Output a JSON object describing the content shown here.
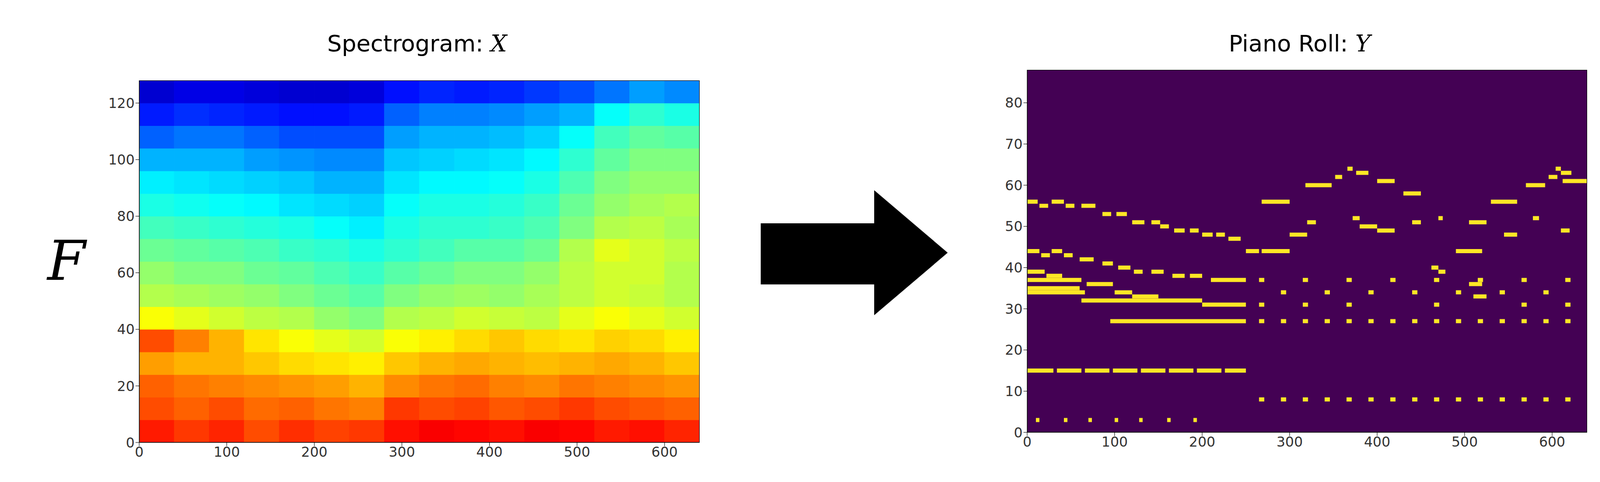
{
  "chart_data": [
    {
      "type": "heatmap",
      "title": "Spectrogram: X",
      "ylabel": "F",
      "xlim": [
        0,
        640
      ],
      "ylim": [
        0,
        128
      ],
      "xticks": [
        0,
        100,
        200,
        300,
        400,
        500,
        600
      ],
      "yticks": [
        0,
        20,
        40,
        60,
        80,
        100,
        120
      ],
      "x_edges": [
        0,
        40,
        80,
        120,
        160,
        200,
        240,
        280,
        320,
        360,
        400,
        440,
        480,
        520,
        560,
        600,
        640
      ],
      "y_edges": [
        0,
        8,
        16,
        24,
        32,
        40,
        48,
        56,
        64,
        72,
        80,
        88,
        96,
        104,
        112,
        120,
        128
      ],
      "color_range": [
        0,
        1
      ],
      "cells": [
        [
          0.85,
          0.82,
          0.84,
          0.8,
          0.83,
          0.81,
          0.82,
          0.86,
          0.88,
          0.87,
          0.86,
          0.88,
          0.87,
          0.85,
          0.86,
          0.84
        ],
        [
          0.8,
          0.78,
          0.8,
          0.77,
          0.78,
          0.76,
          0.75,
          0.82,
          0.8,
          0.81,
          0.79,
          0.8,
          0.82,
          0.8,
          0.79,
          0.78
        ],
        [
          0.78,
          0.76,
          0.75,
          0.74,
          0.73,
          0.72,
          0.7,
          0.74,
          0.76,
          0.77,
          0.75,
          0.74,
          0.76,
          0.75,
          0.74,
          0.73
        ],
        [
          0.72,
          0.7,
          0.7,
          0.68,
          0.66,
          0.65,
          0.64,
          0.68,
          0.7,
          0.71,
          0.7,
          0.69,
          0.7,
          0.71,
          0.7,
          0.68
        ],
        [
          0.8,
          0.75,
          0.7,
          0.65,
          0.62,
          0.6,
          0.58,
          0.62,
          0.64,
          0.66,
          0.68,
          0.66,
          0.65,
          0.67,
          0.66,
          0.64
        ],
        [
          0.62,
          0.6,
          0.58,
          0.56,
          0.55,
          0.52,
          0.5,
          0.55,
          0.56,
          0.58,
          0.57,
          0.56,
          0.6,
          0.62,
          0.6,
          0.58
        ],
        [
          0.55,
          0.54,
          0.53,
          0.52,
          0.5,
          0.48,
          0.46,
          0.5,
          0.52,
          0.53,
          0.52,
          0.54,
          0.56,
          0.58,
          0.57,
          0.55
        ],
        [
          0.52,
          0.5,
          0.5,
          0.48,
          0.47,
          0.45,
          0.43,
          0.46,
          0.48,
          0.5,
          0.5,
          0.52,
          0.56,
          0.58,
          0.58,
          0.55
        ],
        [
          0.48,
          0.47,
          0.46,
          0.45,
          0.43,
          0.42,
          0.4,
          0.42,
          0.44,
          0.46,
          0.46,
          0.48,
          0.55,
          0.6,
          0.58,
          0.56
        ],
        [
          0.44,
          0.43,
          0.42,
          0.41,
          0.4,
          0.38,
          0.36,
          0.4,
          0.42,
          0.42,
          0.43,
          0.45,
          0.5,
          0.55,
          0.56,
          0.54
        ],
        [
          0.4,
          0.39,
          0.38,
          0.37,
          0.35,
          0.34,
          0.33,
          0.38,
          0.4,
          0.4,
          0.41,
          0.43,
          0.48,
          0.52,
          0.54,
          0.55
        ],
        [
          0.36,
          0.35,
          0.34,
          0.33,
          0.32,
          0.3,
          0.3,
          0.35,
          0.37,
          0.37,
          0.38,
          0.4,
          0.45,
          0.5,
          0.52,
          0.52
        ],
        [
          0.3,
          0.3,
          0.3,
          0.28,
          0.27,
          0.26,
          0.26,
          0.32,
          0.33,
          0.34,
          0.35,
          0.37,
          0.42,
          0.47,
          0.5,
          0.5
        ],
        [
          0.22,
          0.24,
          0.24,
          0.22,
          0.2,
          0.2,
          0.2,
          0.28,
          0.3,
          0.3,
          0.31,
          0.33,
          0.38,
          0.44,
          0.47,
          0.46
        ],
        [
          0.15,
          0.17,
          0.16,
          0.15,
          0.14,
          0.14,
          0.15,
          0.22,
          0.25,
          0.25,
          0.26,
          0.28,
          0.3,
          0.38,
          0.42,
          0.4
        ],
        [
          0.08,
          0.1,
          0.1,
          0.09,
          0.08,
          0.08,
          0.09,
          0.14,
          0.16,
          0.15,
          0.16,
          0.18,
          0.2,
          0.24,
          0.28,
          0.26
        ]
      ]
    },
    {
      "type": "piano_roll",
      "title": "Piano Roll: Y",
      "xlim": [
        0,
        640
      ],
      "ylim": [
        0,
        88
      ],
      "xticks": [
        0,
        100,
        200,
        300,
        400,
        500,
        600
      ],
      "yticks": [
        0,
        10,
        20,
        30,
        40,
        50,
        60,
        70,
        80
      ],
      "color": "#fde725",
      "notes": [
        [
          56,
          0,
          12
        ],
        [
          55,
          14,
          24
        ],
        [
          56,
          28,
          42
        ],
        [
          55,
          44,
          54
        ],
        [
          55,
          62,
          78
        ],
        [
          53,
          86,
          96
        ],
        [
          53,
          102,
          114
        ],
        [
          51,
          120,
          134
        ],
        [
          51,
          142,
          152
        ],
        [
          50,
          152,
          162
        ],
        [
          49,
          168,
          180
        ],
        [
          49,
          186,
          196
        ],
        [
          48,
          200,
          212
        ],
        [
          48,
          216,
          226
        ],
        [
          47,
          230,
          244
        ],
        [
          44,
          0,
          14
        ],
        [
          43,
          16,
          26
        ],
        [
          44,
          28,
          40
        ],
        [
          43,
          42,
          52
        ],
        [
          42,
          60,
          76
        ],
        [
          41,
          86,
          98
        ],
        [
          40,
          104,
          118
        ],
        [
          39,
          122,
          132
        ],
        [
          39,
          142,
          156
        ],
        [
          38,
          166,
          180
        ],
        [
          38,
          186,
          200
        ],
        [
          37,
          210,
          250
        ],
        [
          39,
          0,
          20
        ],
        [
          38,
          22,
          40
        ],
        [
          37,
          0,
          62
        ],
        [
          36,
          68,
          98
        ],
        [
          35,
          0,
          60
        ],
        [
          34,
          0,
          66
        ],
        [
          34,
          100,
          120
        ],
        [
          33,
          120,
          150
        ],
        [
          32,
          62,
          200
        ],
        [
          31,
          200,
          250
        ],
        [
          27,
          95,
          250
        ],
        [
          15,
          0,
          30
        ],
        [
          15,
          34,
          62
        ],
        [
          15,
          66,
          94
        ],
        [
          15,
          98,
          126
        ],
        [
          15,
          130,
          158
        ],
        [
          15,
          162,
          190
        ],
        [
          15,
          194,
          222
        ],
        [
          15,
          226,
          250
        ],
        [
          3,
          10,
          14
        ],
        [
          3,
          42,
          46
        ],
        [
          3,
          70,
          74
        ],
        [
          3,
          100,
          104
        ],
        [
          3,
          128,
          132
        ],
        [
          3,
          160,
          164
        ],
        [
          3,
          190,
          194
        ],
        [
          8,
          265,
          271
        ],
        [
          8,
          290,
          296
        ],
        [
          8,
          315,
          321
        ],
        [
          8,
          340,
          346
        ],
        [
          8,
          365,
          371
        ],
        [
          8,
          390,
          396
        ],
        [
          8,
          415,
          421
        ],
        [
          8,
          440,
          446
        ],
        [
          8,
          465,
          471
        ],
        [
          8,
          490,
          496
        ],
        [
          8,
          515,
          521
        ],
        [
          8,
          540,
          546
        ],
        [
          8,
          565,
          571
        ],
        [
          8,
          590,
          596
        ],
        [
          8,
          615,
          621
        ],
        [
          27,
          265,
          271
        ],
        [
          27,
          290,
          296
        ],
        [
          27,
          315,
          321
        ],
        [
          27,
          340,
          346
        ],
        [
          27,
          365,
          371
        ],
        [
          27,
          390,
          396
        ],
        [
          27,
          415,
          421
        ],
        [
          27,
          440,
          446
        ],
        [
          27,
          465,
          471
        ],
        [
          27,
          490,
          496
        ],
        [
          27,
          515,
          521
        ],
        [
          27,
          540,
          546
        ],
        [
          27,
          565,
          571
        ],
        [
          27,
          590,
          596
        ],
        [
          27,
          615,
          621
        ],
        [
          37,
          265,
          271
        ],
        [
          37,
          315,
          321
        ],
        [
          37,
          365,
          371
        ],
        [
          37,
          415,
          421
        ],
        [
          37,
          465,
          471
        ],
        [
          37,
          515,
          521
        ],
        [
          37,
          565,
          571
        ],
        [
          37,
          615,
          621
        ],
        [
          34,
          290,
          296
        ],
        [
          34,
          340,
          346
        ],
        [
          34,
          390,
          396
        ],
        [
          34,
          440,
          446
        ],
        [
          34,
          490,
          496
        ],
        [
          34,
          540,
          546
        ],
        [
          34,
          590,
          596
        ],
        [
          31,
          265,
          271
        ],
        [
          31,
          315,
          321
        ],
        [
          31,
          365,
          371
        ],
        [
          31,
          465,
          471
        ],
        [
          31,
          565,
          571
        ],
        [
          31,
          615,
          621
        ],
        [
          56,
          268,
          300
        ],
        [
          60,
          318,
          348
        ],
        [
          62,
          352,
          360
        ],
        [
          64,
          366,
          372
        ],
        [
          63,
          376,
          390
        ],
        [
          61,
          400,
          420
        ],
        [
          58,
          430,
          450
        ],
        [
          56,
          530,
          560
        ],
        [
          60,
          570,
          592
        ],
        [
          62,
          596,
          606
        ],
        [
          64,
          604,
          610
        ],
        [
          63,
          610,
          622
        ],
        [
          61,
          612,
          640
        ],
        [
          48,
          300,
          320
        ],
        [
          51,
          320,
          330
        ],
        [
          52,
          372,
          380
        ],
        [
          50,
          380,
          400
        ],
        [
          49,
          400,
          420
        ],
        [
          51,
          440,
          450
        ],
        [
          52,
          470,
          475
        ],
        [
          51,
          505,
          525
        ],
        [
          48,
          545,
          560
        ],
        [
          52,
          578,
          585
        ],
        [
          49,
          610,
          620
        ],
        [
          44,
          250,
          265
        ],
        [
          44,
          268,
          300
        ],
        [
          44,
          490,
          520
        ],
        [
          40,
          462,
          470
        ],
        [
          39,
          470,
          478
        ],
        [
          36,
          505,
          520
        ],
        [
          33,
          510,
          525
        ]
      ]
    }
  ]
}
